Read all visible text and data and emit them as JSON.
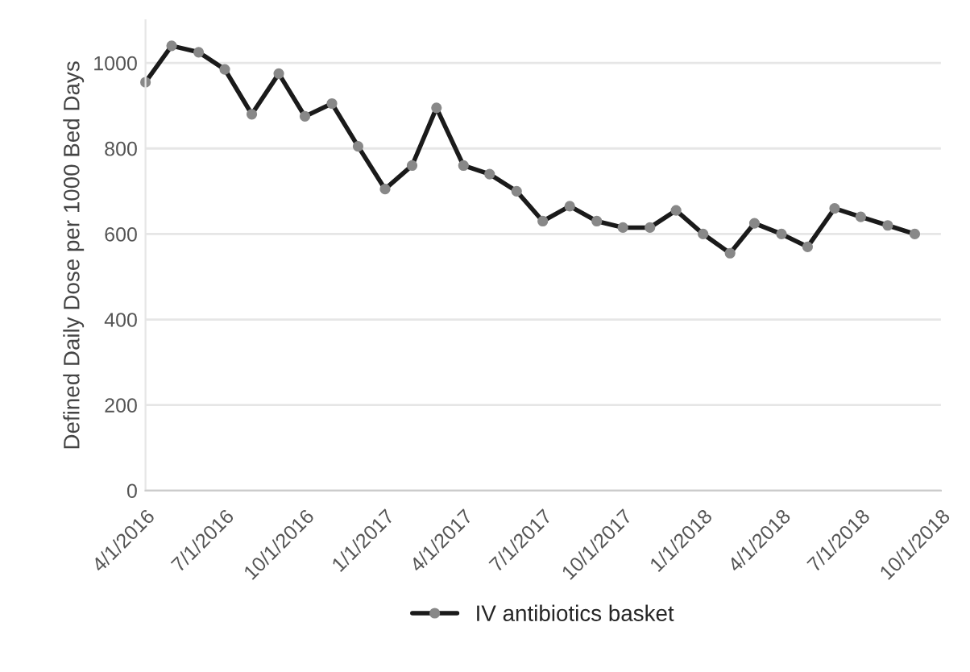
{
  "chart_data": {
    "type": "line",
    "ylabel": "Defined Daily Dose per 1000 Bed Days",
    "x": [
      "2016-04",
      "2016-05",
      "2016-06",
      "2016-07",
      "2016-08",
      "2016-09",
      "2016-10",
      "2016-11",
      "2016-12",
      "2017-01",
      "2017-02",
      "2017-03",
      "2017-04",
      "2017-05",
      "2017-06",
      "2017-07",
      "2017-08",
      "2017-09",
      "2017-10",
      "2017-11",
      "2017-12",
      "2018-01",
      "2018-02",
      "2018-03",
      "2018-04",
      "2018-05",
      "2018-06",
      "2018-07",
      "2018-08",
      "2018-09"
    ],
    "series": [
      {
        "name": "IV antibiotics basket",
        "color": "#1a1a1a",
        "values": [
          955,
          1040,
          1025,
          985,
          880,
          975,
          875,
          905,
          805,
          705,
          760,
          895,
          760,
          740,
          700,
          630,
          665,
          630,
          615,
          615,
          655,
          600,
          555,
          625,
          600,
          570,
          660,
          640,
          620,
          600
        ]
      }
    ],
    "xlim": [
      "2016-04-01",
      "2018-10-01"
    ],
    "xticks": [
      {
        "value": "2016-04-01",
        "label": "4/1/2016"
      },
      {
        "value": "2016-07-01",
        "label": "7/1/2016"
      },
      {
        "value": "2016-10-01",
        "label": "10/1/2016"
      },
      {
        "value": "2017-01-01",
        "label": "1/1/2017"
      },
      {
        "value": "2017-04-01",
        "label": "4/1/2017"
      },
      {
        "value": "2017-07-01",
        "label": "7/1/2017"
      },
      {
        "value": "2017-10-01",
        "label": "10/1/2017"
      },
      {
        "value": "2018-01-01",
        "label": "1/1/2018"
      },
      {
        "value": "2018-04-01",
        "label": "4/1/2018"
      },
      {
        "value": "2018-07-01",
        "label": "7/1/2018"
      },
      {
        "value": "2018-10-01",
        "label": "10/1/2018"
      }
    ],
    "ylim": [
      0,
      1100
    ],
    "yticks": [
      0,
      200,
      400,
      600,
      800,
      1000
    ],
    "grid": "y",
    "legend": "bottom",
    "marker": "circle",
    "line_style": "solid"
  }
}
